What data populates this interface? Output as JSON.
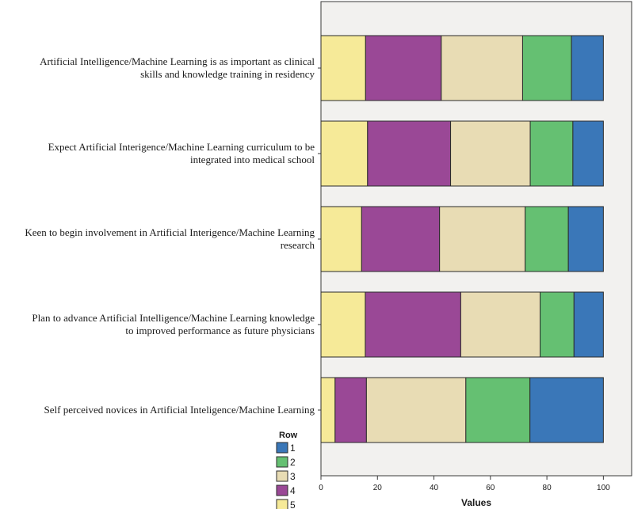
{
  "chart_data": {
    "type": "bar",
    "orientation": "horizontal",
    "stacked": true,
    "xlabel": "Values",
    "xlim": [
      0,
      110
    ],
    "xticks": [
      0,
      20,
      40,
      60,
      80,
      100
    ],
    "grid": false,
    "legend_title": "Row",
    "legend_position": "bottom-left",
    "categories": [
      [
        "Artificial Intelligence/Machine Learning is as important as clinical",
        "skills and knowledge training in residency"
      ],
      [
        "Expect Artificial Interigence/Machine Learning curriculum to be",
        "integrated into medical school"
      ],
      [
        "Keen to begin involvement in Artificial Interigence/Machine Learning",
        "research"
      ],
      [
        "Plan to advance Artificial Intelligence/Machine Learning knowledge",
        "to improved performance as future physicians"
      ],
      [
        "Self perceived novices in Artificial Inteligence/Machine Learning"
      ]
    ],
    "stack_order": [
      "5",
      "4",
      "3",
      "2",
      "1"
    ],
    "series": [
      {
        "name": "1",
        "color": "#3a77b8",
        "values": [
          11.3,
          10.8,
          12.4,
          10.4,
          26.0
        ]
      },
      {
        "name": "2",
        "color": "#65c072",
        "values": [
          17.3,
          15.1,
          15.3,
          12.0,
          22.7
        ]
      },
      {
        "name": "3",
        "color": "#e8dcb4",
        "values": [
          28.8,
          28.2,
          30.3,
          28.1,
          35.2
        ]
      },
      {
        "name": "4",
        "color": "#9a4896",
        "values": [
          26.8,
          29.4,
          27.6,
          33.8,
          11.1
        ]
      },
      {
        "name": "5",
        "color": "#f6ea98",
        "values": [
          15.8,
          16.5,
          14.4,
          15.7,
          5.0
        ]
      }
    ]
  }
}
